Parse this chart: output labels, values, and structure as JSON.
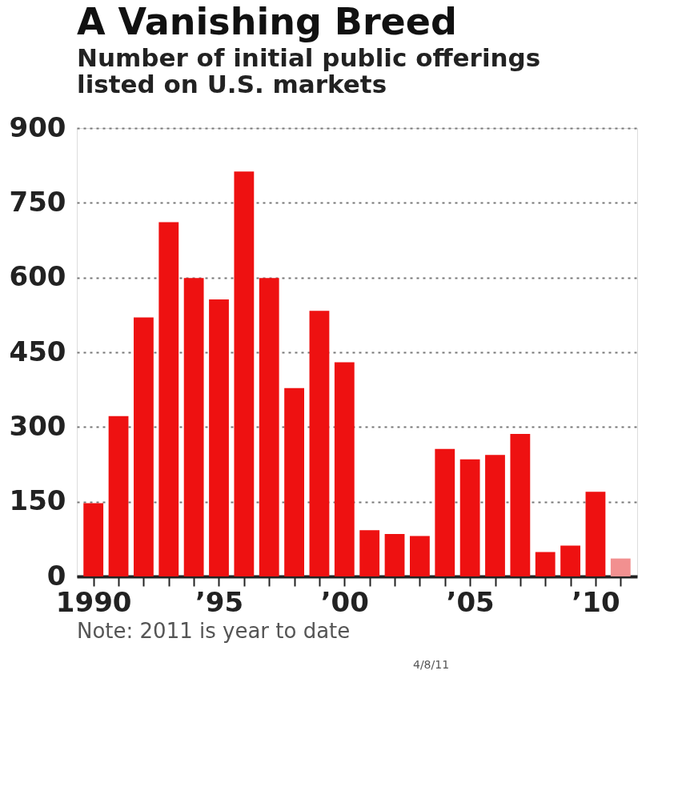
{
  "chart_data": {
    "type": "bar",
    "title": "A Vanishing Breed",
    "subtitle": "Number of initial public offerings\nlisted on U.S. markets",
    "x": [
      1990,
      1991,
      1992,
      1993,
      1994,
      1995,
      1996,
      1997,
      1998,
      1999,
      2000,
      2001,
      2002,
      2003,
      2004,
      2005,
      2006,
      2007,
      2008,
      2009,
      2010,
      2011
    ],
    "values": [
      147,
      322,
      520,
      711,
      599,
      556,
      813,
      599,
      378,
      533,
      430,
      93,
      85,
      81,
      256,
      235,
      244,
      286,
      49,
      62,
      170,
      36
    ],
    "colors": [
      "#ee1111",
      "#ee1111",
      "#ee1111",
      "#ee1111",
      "#ee1111",
      "#ee1111",
      "#ee1111",
      "#ee1111",
      "#ee1111",
      "#ee1111",
      "#ee1111",
      "#ee1111",
      "#ee1111",
      "#ee1111",
      "#ee1111",
      "#ee1111",
      "#ee1111",
      "#ee1111",
      "#ee1111",
      "#ee1111",
      "#ee1111",
      "#f29090"
    ],
    "xlim": [
      1989.5,
      2011.5
    ],
    "xticks": [
      {
        "value": 1990,
        "label": "1990"
      },
      {
        "value": 1991,
        "label": null
      },
      {
        "value": 1992,
        "label": null
      },
      {
        "value": 1993,
        "label": null
      },
      {
        "value": 1994,
        "label": null
      },
      {
        "value": 1995,
        "label": "’95"
      },
      {
        "value": 1996,
        "label": null
      },
      {
        "value": 1997,
        "label": null
      },
      {
        "value": 1998,
        "label": null
      },
      {
        "value": 1999,
        "label": null
      },
      {
        "value": 2000,
        "label": "’00"
      },
      {
        "value": 2001,
        "label": null
      },
      {
        "value": 2002,
        "label": null
      },
      {
        "value": 2003,
        "label": null
      },
      {
        "value": 2004,
        "label": null
      },
      {
        "value": 2005,
        "label": "’05"
      },
      {
        "value": 2006,
        "label": null
      },
      {
        "value": 2007,
        "label": null
      },
      {
        "value": 2008,
        "label": null
      },
      {
        "value": 2009,
        "label": null
      },
      {
        "value": 2010,
        "label": "’10"
      },
      {
        "value": 2011,
        "label": null
      }
    ],
    "ylim": [
      0,
      900
    ],
    "yticks": [
      0,
      150,
      300,
      450,
      600,
      750,
      900
    ],
    "grid": "y",
    "annotations": [
      "Note: 2011 is year to date",
      "4/8/11"
    ]
  }
}
